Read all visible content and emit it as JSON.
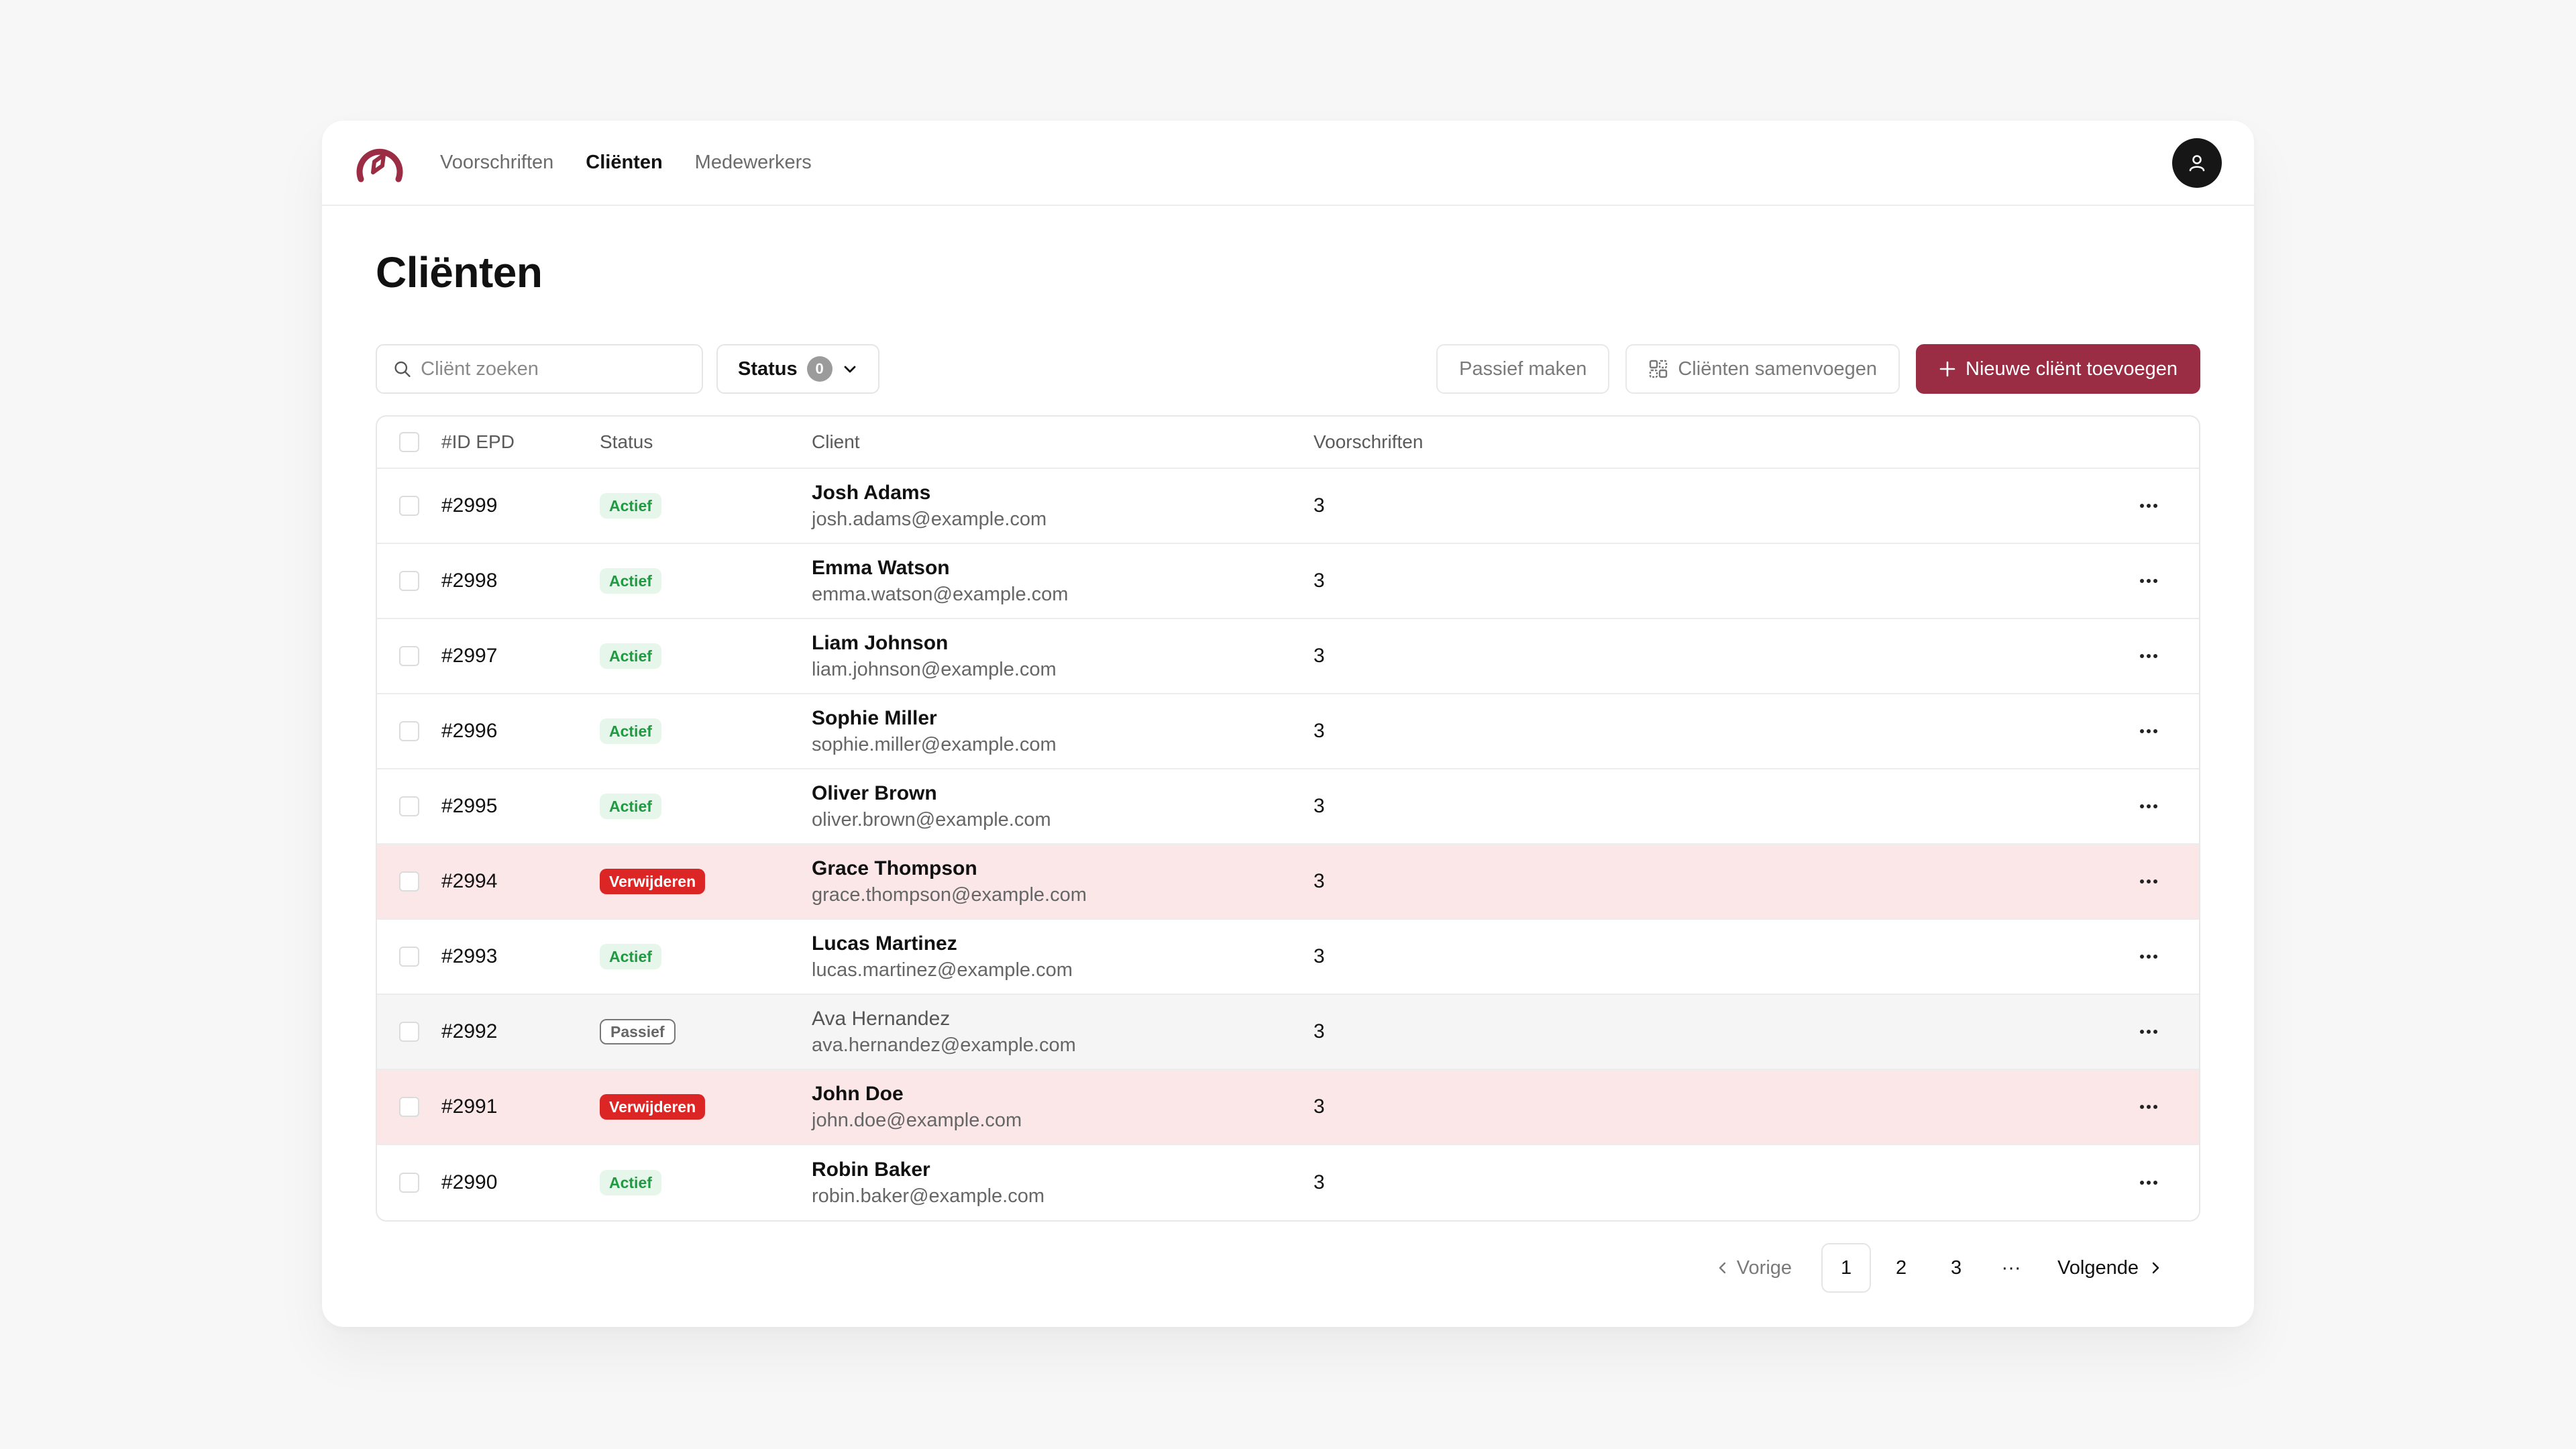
{
  "nav": {
    "items": [
      {
        "label": "Voorschriften",
        "active": false
      },
      {
        "label": "Cliënten",
        "active": true
      },
      {
        "label": "Medewerkers",
        "active": false
      }
    ]
  },
  "page": {
    "title": "Cliënten"
  },
  "toolbar": {
    "search_placeholder": "Cliënt zoeken",
    "status_label": "Status",
    "status_count": "0",
    "passive_label": "Passief maken",
    "merge_label": "Cliënten samenvoegen",
    "new_label": "Nieuwe cliënt toevoegen"
  },
  "table": {
    "headers": {
      "id": "#ID EPD",
      "status": "Status",
      "client": "Client",
      "rx": "Voorschriften"
    },
    "rows": [
      {
        "id": "#2999",
        "status": "Actief",
        "status_type": "actief",
        "name": "Josh Adams",
        "email": "josh.adams@example.com",
        "rx": "3"
      },
      {
        "id": "#2998",
        "status": "Actief",
        "status_type": "actief",
        "name": "Emma Watson",
        "email": "emma.watson@example.com",
        "rx": "3"
      },
      {
        "id": "#2997",
        "status": "Actief",
        "status_type": "actief",
        "name": "Liam Johnson",
        "email": "liam.johnson@example.com",
        "rx": "3"
      },
      {
        "id": "#2996",
        "status": "Actief",
        "status_type": "actief",
        "name": "Sophie Miller",
        "email": "sophie.miller@example.com",
        "rx": "3"
      },
      {
        "id": "#2995",
        "status": "Actief",
        "status_type": "actief",
        "name": "Oliver Brown",
        "email": "oliver.brown@example.com",
        "rx": "3"
      },
      {
        "id": "#2994",
        "status": "Verwijderen",
        "status_type": "verwijderen",
        "name": "Grace Thompson",
        "email": "grace.thompson@example.com",
        "rx": "3"
      },
      {
        "id": "#2993",
        "status": "Actief",
        "status_type": "actief",
        "name": "Lucas Martinez",
        "email": "lucas.martinez@example.com",
        "rx": "3"
      },
      {
        "id": "#2992",
        "status": "Passief",
        "status_type": "passief",
        "name": "Ava Hernandez",
        "email": "ava.hernandez@example.com",
        "rx": "3"
      },
      {
        "id": "#2991",
        "status": "Verwijderen",
        "status_type": "verwijderen",
        "name": "John Doe",
        "email": "john.doe@example.com",
        "rx": "3"
      },
      {
        "id": "#2990",
        "status": "Actief",
        "status_type": "actief",
        "name": "Robin Baker",
        "email": "robin.baker@example.com",
        "rx": "3"
      }
    ]
  },
  "pagination": {
    "prev_label": "Vorige",
    "next_label": "Volgende",
    "pages": [
      "1",
      "2",
      "3"
    ],
    "current": "1",
    "ellipsis": "···"
  },
  "colors": {
    "brand": "#9a2c44",
    "active_badge": "#1f9a42",
    "delete_badge": "#dc2626",
    "delete_row": "#fbe7e7",
    "passive_row": "#f5f5f5"
  }
}
